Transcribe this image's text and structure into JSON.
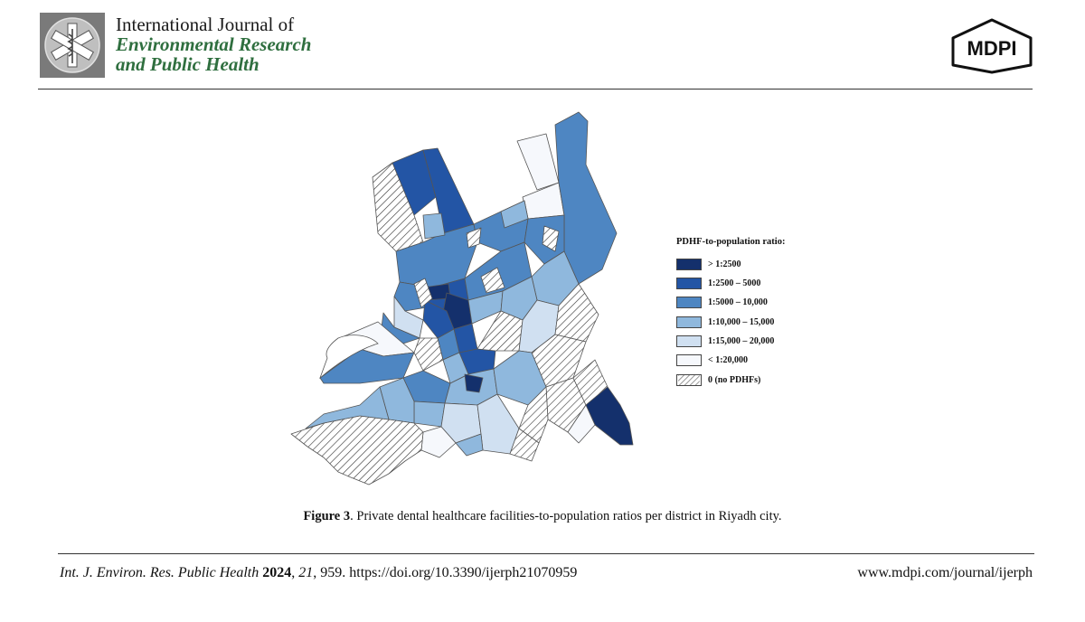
{
  "header": {
    "journal_line1": "International Journal of",
    "journal_line2": "Environmental Research",
    "journal_line3": "and Public Health",
    "publisher": "MDPI"
  },
  "legend": {
    "title": "PDHF-to-population ratio:",
    "items": [
      {
        "label": "> 1:2500",
        "color": "#14306c",
        "pattern": false
      },
      {
        "label": "1:2500 – 5000",
        "color": "#2355a5",
        "pattern": false
      },
      {
        "label": "1:5000 – 10,000",
        "color": "#4e86c2",
        "pattern": false
      },
      {
        "label": "1:10,000 – 15,000",
        "color": "#8fb8dd",
        "pattern": false
      },
      {
        "label": "1:15,000 – 20,000",
        "color": "#d0e0f1",
        "pattern": false
      },
      {
        "label": "< 1:20,000",
        "color": "#f6f8fc",
        "pattern": false
      },
      {
        "label": "0 (no PDHFs)",
        "color": "#ffffff",
        "pattern": true
      }
    ]
  },
  "caption": {
    "label": "Figure 3",
    "text": ". Private dental healthcare facilities-to-population ratios per district in Riyadh city."
  },
  "footer": {
    "journal_abbrev": "Int. J. Environ. Res. Public Health",
    "year": "2024",
    "volume": "21",
    "pages_doi": ", 959. https://doi.org/10.3390/ijerph21070959",
    "website": "www.mdpi.com/journal/ijerph"
  }
}
